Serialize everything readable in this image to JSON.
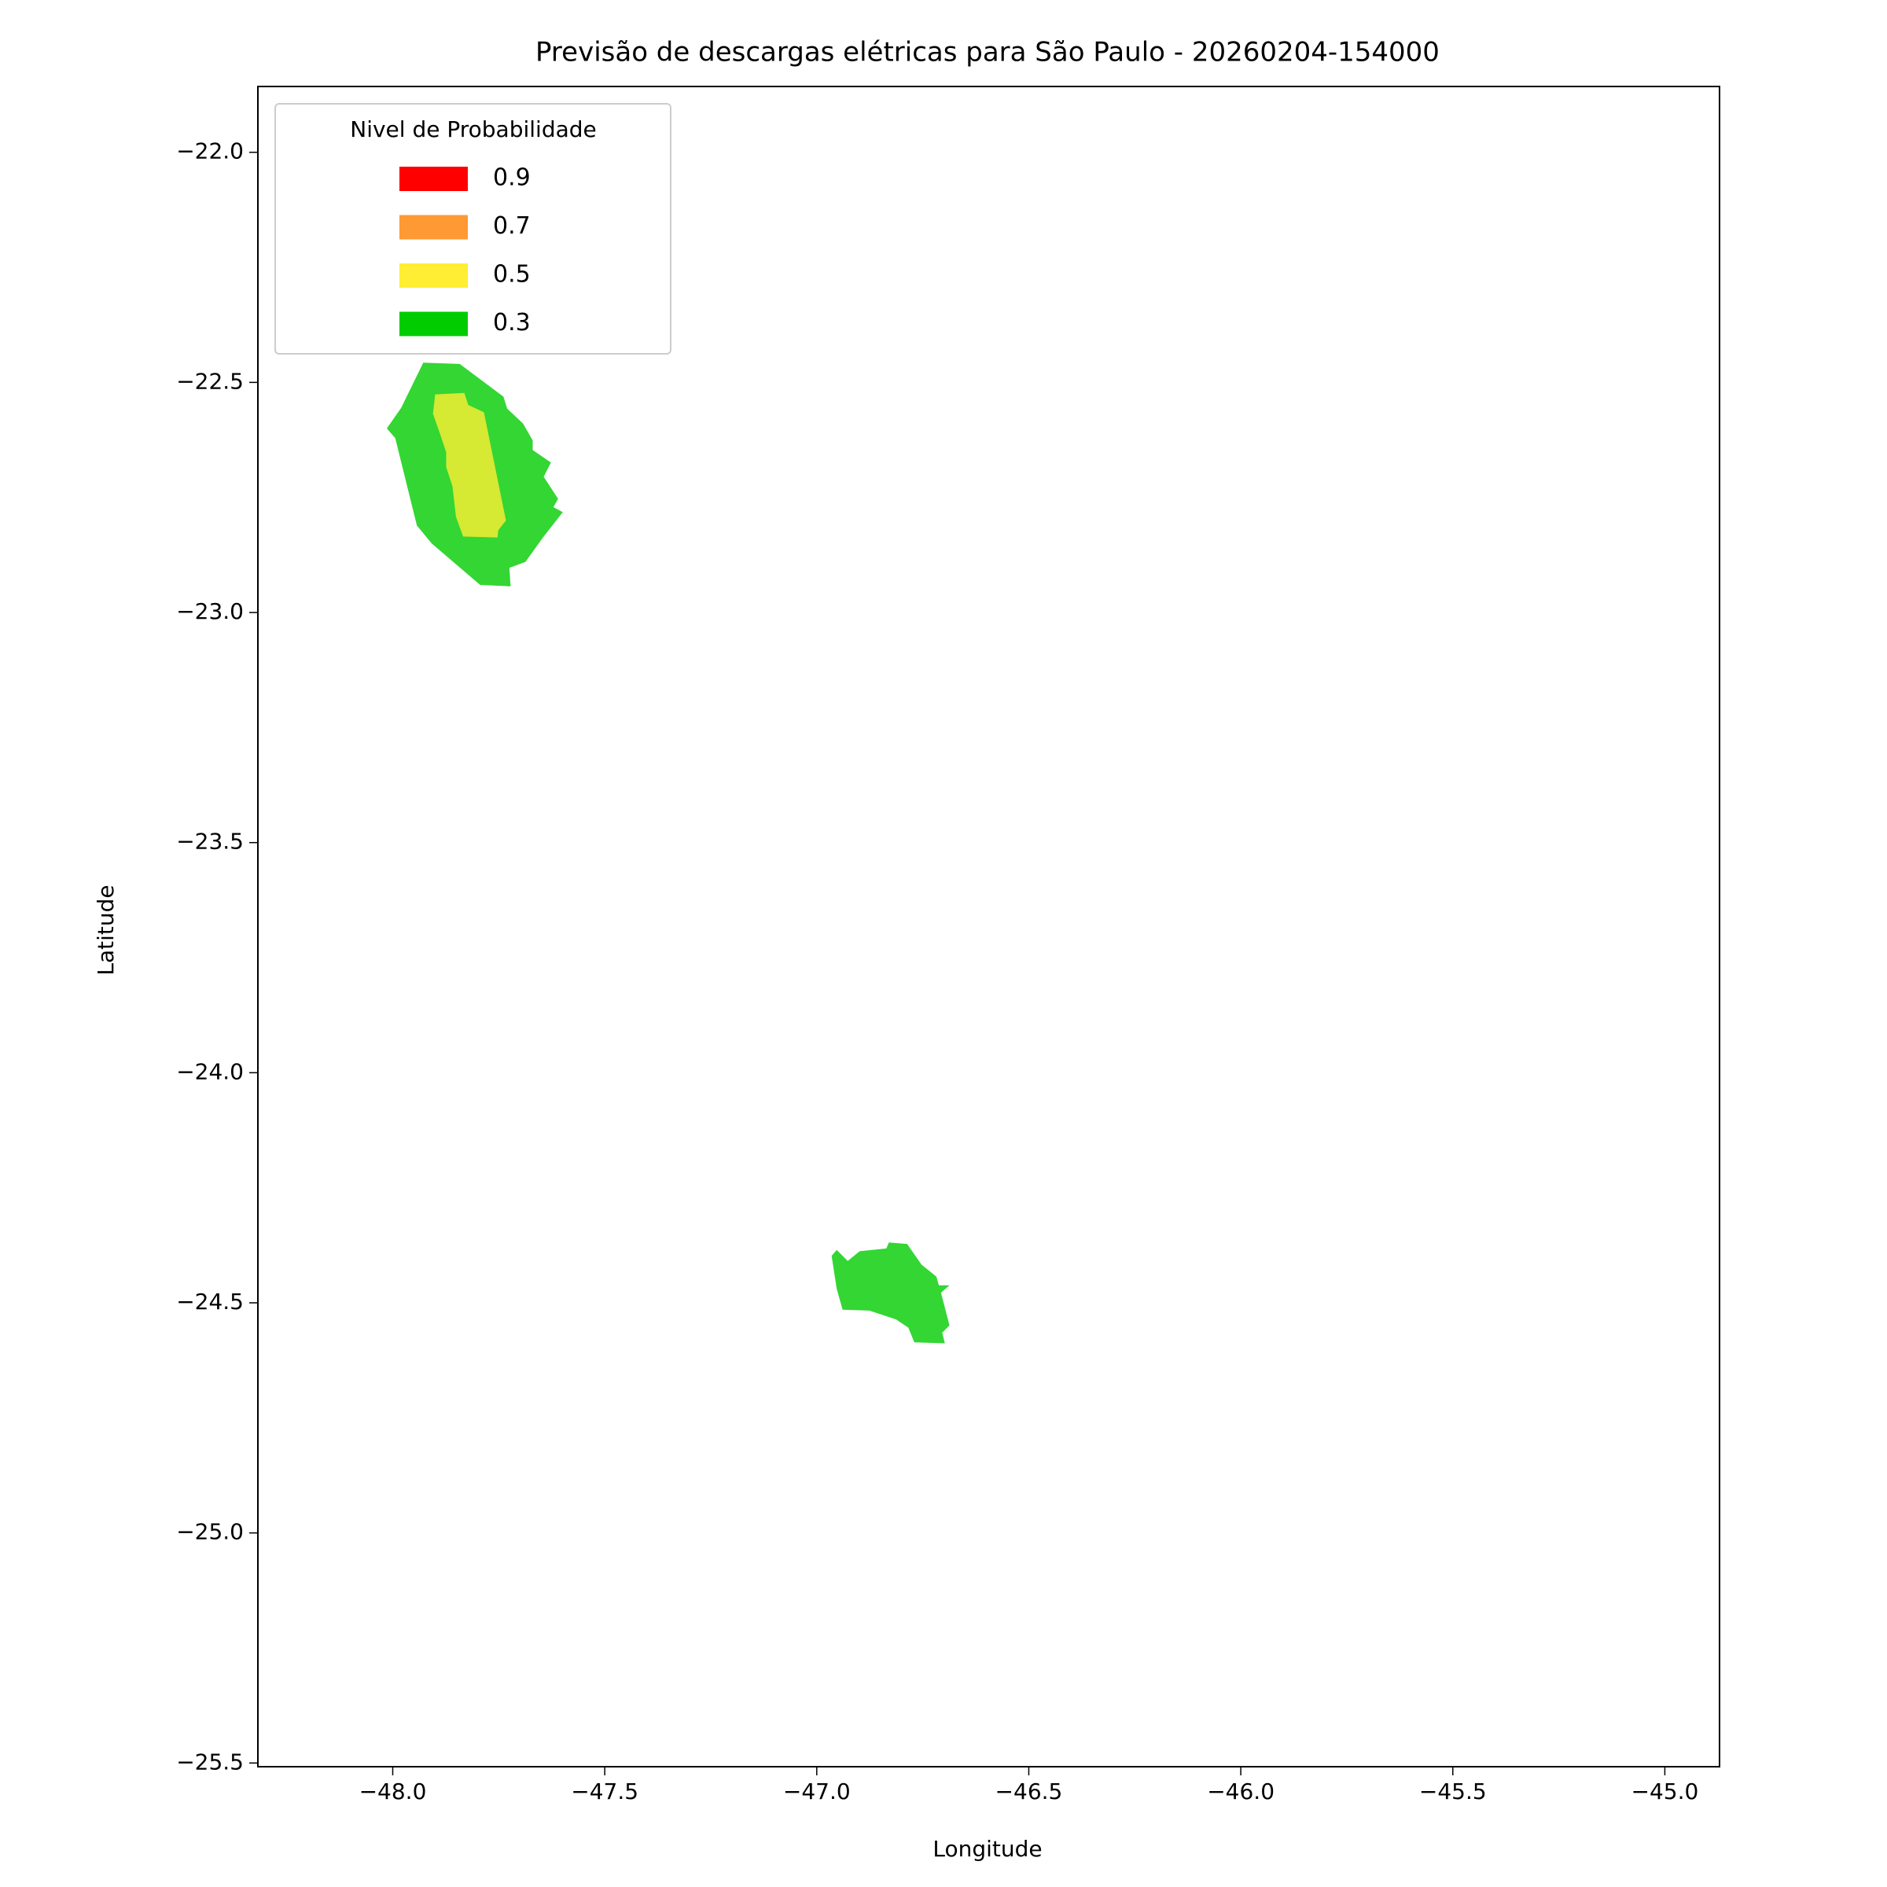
{
  "chart_data": {
    "type": "contour",
    "title": "Previsão de descargas elétricas para São Paulo - 20260204-154000",
    "x_label": "Longitude",
    "y_label": "Latitude",
    "xlim": [
      -48.318,
      -44.871
    ],
    "ylim": [
      -25.508,
      -21.857
    ],
    "xticks": [
      {
        "value": -48.0,
        "label": "−48.0"
      },
      {
        "value": -47.5,
        "label": "−47.5"
      },
      {
        "value": -47.0,
        "label": "−47.0"
      },
      {
        "value": -46.5,
        "label": "−46.5"
      },
      {
        "value": -46.0,
        "label": "−46.0"
      },
      {
        "value": -45.5,
        "label": "−45.5"
      },
      {
        "value": -45.0,
        "label": "−45.0"
      }
    ],
    "yticks": [
      {
        "value": -22.0,
        "label": "−22.0"
      },
      {
        "value": -22.5,
        "label": "−22.5"
      },
      {
        "value": -23.0,
        "label": "−23.0"
      },
      {
        "value": -23.5,
        "label": "−23.5"
      },
      {
        "value": -24.0,
        "label": "−24.0"
      },
      {
        "value": -24.5,
        "label": "−24.5"
      },
      {
        "value": -25.0,
        "label": "−25.0"
      },
      {
        "value": -25.5,
        "label": "−25.5"
      }
    ],
    "legend_title": "Nivel de Probabilidade",
    "legend_position": "upper-left",
    "alpha": 0.8,
    "series": [
      {
        "name": "0.9",
        "color": "#ff0000",
        "polygons": []
      },
      {
        "name": "0.7",
        "color": "#ff9933",
        "polygons": []
      },
      {
        "name": "0.5",
        "color": "#ffee33",
        "polygons": [
          {
            "lon": [
              -47.9,
              -47.831,
              -47.822,
              -47.785,
              -47.733,
              -47.751,
              -47.753,
              -47.834,
              -47.851,
              -47.859,
              -47.874,
              -47.874,
              -47.888,
              -47.905
            ],
            "lat": [
              -22.526,
              -22.523,
              -22.549,
              -22.565,
              -22.8,
              -22.821,
              -22.837,
              -22.835,
              -22.792,
              -22.726,
              -22.684,
              -22.652,
              -22.613,
              -22.568
            ]
          }
        ]
      },
      {
        "name": "0.3",
        "color": "#00cc00",
        "polygons": [
          {
            "lon": [
              -47.928,
              -47.842,
              -47.739,
              -47.73,
              -47.693,
              -47.67,
              -47.67,
              -47.627,
              -47.644,
              -47.61,
              -47.621,
              -47.599,
              -47.644,
              -47.687,
              -47.725,
              -47.722,
              -47.794,
              -47.908,
              -47.943,
              -47.994,
              -48.014,
              -47.98
            ],
            "lat": [
              -22.457,
              -22.46,
              -22.531,
              -22.557,
              -22.589,
              -22.626,
              -22.647,
              -22.674,
              -22.705,
              -22.753,
              -22.771,
              -22.782,
              -22.835,
              -22.89,
              -22.903,
              -22.943,
              -22.94,
              -22.85,
              -22.811,
              -22.621,
              -22.6,
              -22.555
            ]
          },
          {
            "lon": [
              -46.965,
              -46.953,
              -46.927,
              -46.899,
              -46.836,
              -46.83,
              -46.787,
              -46.753,
              -46.718,
              -46.712,
              -46.687,
              -46.707,
              -46.687,
              -46.704,
              -46.698,
              -46.77,
              -46.784,
              -46.813,
              -46.876,
              -46.939,
              -46.953
            ],
            "lat": [
              -24.398,
              -24.385,
              -24.409,
              -24.388,
              -24.382,
              -24.369,
              -24.372,
              -24.417,
              -24.443,
              -24.462,
              -24.462,
              -24.478,
              -24.549,
              -24.565,
              -24.588,
              -24.586,
              -24.554,
              -24.536,
              -24.517,
              -24.515,
              -24.47
            ]
          }
        ]
      }
    ]
  }
}
